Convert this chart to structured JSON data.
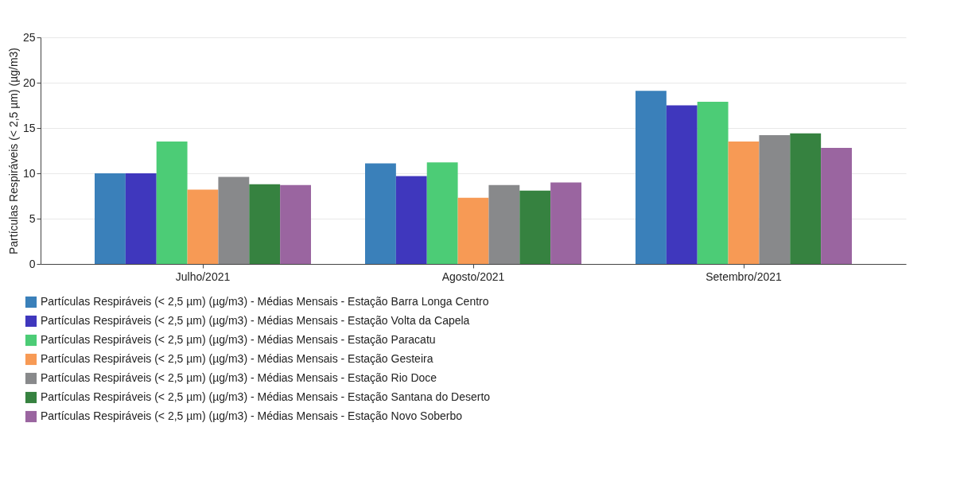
{
  "chart_data": {
    "type": "bar",
    "ylabel": "Partículas Respiráveis (< 2,5 µm) (µg/m3)",
    "categories": [
      "Julho/2021",
      "Agosto/2021",
      "Setembro/2021"
    ],
    "series": [
      {
        "name": "Partículas Respiráveis (< 2,5 µm) (µg/m3) - Médias Mensais - Estação Barra Longa Centro",
        "color": "#3a80ba",
        "values": [
          10.0,
          11.1,
          19.1
        ]
      },
      {
        "name": "Partículas Respiráveis (< 2,5 µm) (µg/m3) - Médias Mensais - Estação Volta da Capela",
        "color": "#3f37bd",
        "values": [
          10.0,
          9.7,
          17.5
        ]
      },
      {
        "name": "Partículas Respiráveis (< 2,5 µm) (µg/m3) - Médias Mensais - Estação Paracatu",
        "color": "#4ccc76",
        "values": [
          13.5,
          11.2,
          17.9
        ]
      },
      {
        "name": "Partículas Respiráveis (< 2,5 µm) (µg/m3) - Médias Mensais - Estação Gesteira",
        "color": "#f79a55",
        "values": [
          8.2,
          7.3,
          13.5
        ]
      },
      {
        "name": "Partículas Respiráveis (< 2,5 µm) (µg/m3) - Médias Mensais - Estação Rio Doce",
        "color": "#88898b",
        "values": [
          9.6,
          8.7,
          14.2
        ]
      },
      {
        "name": "Partículas Respiráveis (< 2,5 µm) (µg/m3) - Médias Mensais - Estação Santana do Deserto",
        "color": "#368240",
        "values": [
          8.8,
          8.1,
          14.4
        ]
      },
      {
        "name": "Partículas Respiráveis (< 2,5 µm) (µg/m3) - Médias Mensais - Estação Novo Soberbo",
        "color": "#9a65a0",
        "values": [
          8.7,
          9.0,
          12.8
        ]
      }
    ],
    "ylim": [
      0,
      25
    ],
    "yticks": [
      0,
      5,
      10,
      15,
      20,
      25
    ],
    "grid": "y",
    "legend": "bottom"
  }
}
